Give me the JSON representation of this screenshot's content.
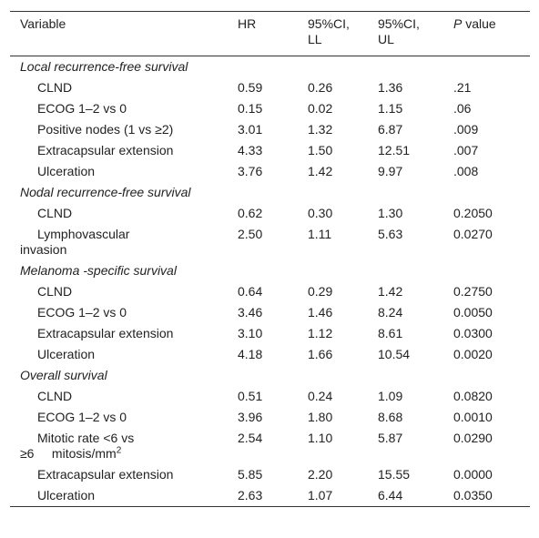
{
  "table": {
    "headers": [
      "Variable",
      "HR",
      "95%CI, LL",
      "95%CI, UL",
      "P value"
    ],
    "sections": [
      {
        "title": "Local recurrence-free survival",
        "rows": [
          {
            "label": [
              "CLND"
            ],
            "cells": [
              "0.59",
              "0.26",
              "1.36",
              ".21"
            ]
          },
          {
            "label": [
              "ECOG 1–2 vs 0"
            ],
            "cells": [
              "0.15",
              "0.02",
              "1.15",
              ".06"
            ]
          },
          {
            "label": [
              "Positive nodes (1 vs ≥2)"
            ],
            "cells": [
              "3.01",
              "1.32",
              "6.87",
              ".009"
            ]
          },
          {
            "label": [
              "Extracapsular extension"
            ],
            "cells": [
              "4.33",
              "1.50",
              "12.51",
              ".007"
            ]
          },
          {
            "label": [
              "Ulceration"
            ],
            "cells": [
              "3.76",
              "1.42",
              "9.97",
              ".008"
            ]
          }
        ]
      },
      {
        "title": "Nodal recurrence-free survival",
        "rows": [
          {
            "label": [
              "CLND"
            ],
            "cells": [
              "0.62",
              "0.30",
              "1.30",
              "0.2050"
            ]
          },
          {
            "label": [
              "Lymphovascular",
              "invasion"
            ],
            "cells": [
              "2.50",
              "1.11",
              "5.63",
              "0.0270"
            ]
          }
        ]
      },
      {
        "title": "Melanoma -specific survival",
        "rows": [
          {
            "label": [
              "CLND"
            ],
            "cells": [
              "0.64",
              "0.29",
              "1.42",
              "0.2750"
            ]
          },
          {
            "label": [
              "ECOG 1–2 vs 0"
            ],
            "cells": [
              "3.46",
              "1.46",
              "8.24",
              "0.0050"
            ]
          },
          {
            "label": [
              "Extracapsular extension"
            ],
            "cells": [
              "3.10",
              "1.12",
              "8.61",
              "0.0300"
            ]
          },
          {
            "label": [
              "Ulceration"
            ],
            "cells": [
              "4.18",
              "1.66",
              "10.54",
              "0.0020"
            ]
          }
        ]
      },
      {
        "title": "Overall survival",
        "rows": [
          {
            "label": [
              "CLND"
            ],
            "cells": [
              "0.51",
              "0.24",
              "1.09",
              "0.0820"
            ]
          },
          {
            "label": [
              "ECOG 1–2 vs 0"
            ],
            "cells": [
              "3.96",
              "1.80",
              "8.68",
              "0.0010"
            ]
          },
          {
            "label": [
              "Mitotic rate <6 vs",
              "≥6     mitosis/mm"
            ],
            "label_sup": "2",
            "cells": [
              "2.54",
              "1.10",
              "5.87",
              "0.0290"
            ]
          },
          {
            "label": [
              "Extracapsular extension"
            ],
            "cells": [
              "5.85",
              "2.20",
              "15.55",
              "0.0000"
            ]
          },
          {
            "label": [
              "Ulceration"
            ],
            "cells": [
              "2.63",
              "1.07",
              "6.44",
              "0.0350"
            ]
          }
        ]
      }
    ]
  }
}
